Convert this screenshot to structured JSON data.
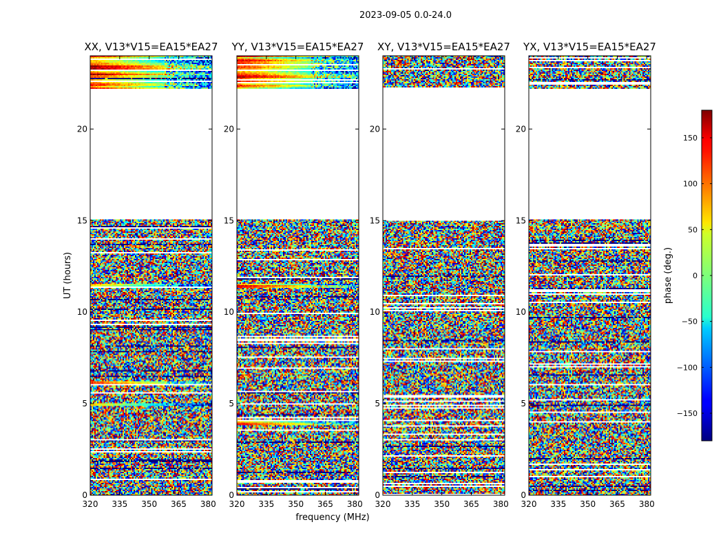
{
  "suptitle": "2023-09-05 0.0-24.0",
  "chart_data": {
    "type": "heatmap",
    "title": "2023-09-05 0.0-24.0",
    "xlabel": "frequency (MHz)",
    "ylabel": "UT (hours)",
    "xlim": [
      320,
      382
    ],
    "ylim": [
      0,
      24
    ],
    "xticks": [
      "320",
      "335",
      "350",
      "365",
      "380"
    ],
    "xtick_values": [
      320,
      335,
      350,
      365,
      380
    ],
    "yticks": [
      "0",
      "5",
      "10",
      "15",
      "20"
    ],
    "ytick_values": [
      0,
      5,
      10,
      15,
      20
    ],
    "colorbar": {
      "label": "phase (deg.)",
      "range": [
        -180,
        180
      ],
      "ticks": [
        "150",
        "100",
        "50",
        "0",
        "−50",
        "−100",
        "−150"
      ],
      "tick_values": [
        150,
        100,
        50,
        0,
        -50,
        -100,
        -150
      ],
      "colormap": "jet"
    },
    "no_data_ranges_hours": [
      [
        15.05,
        22.2
      ]
    ],
    "panels": [
      {
        "id": "XX",
        "title": "XX, V13*V15=EA15*EA27",
        "coherent_ranges_hours": [
          [
            22.2,
            24.0
          ],
          [
            11.3,
            11.55
          ],
          [
            6.0,
            6.25
          ],
          [
            4.85,
            5.0
          ]
        ]
      },
      {
        "id": "YY",
        "title": "YY, V13*V15=EA15*EA27",
        "coherent_ranges_hours": [
          [
            22.2,
            24.0
          ],
          [
            11.3,
            11.55
          ],
          [
            3.8,
            4.05
          ]
        ]
      },
      {
        "id": "XY",
        "title": "XY, V13*V15=EA15*EA27",
        "coherent_ranges_hours": []
      },
      {
        "id": "YX",
        "title": "YX, V13*V15=EA15*EA27",
        "coherent_ranges_hours": []
      }
    ]
  }
}
